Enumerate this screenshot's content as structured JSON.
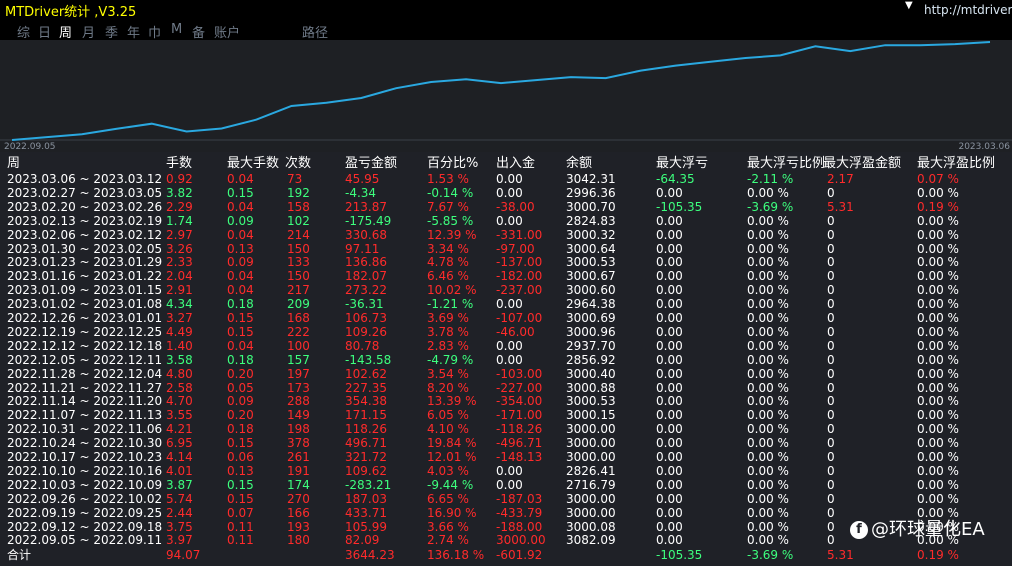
{
  "app": {
    "title": "MTDriver统计 ,V3.25",
    "url": "http://mtdriver.c",
    "brand_icon": "f",
    "brand": "@环球量化EA",
    "corner_icon": "chevron-down-icon"
  },
  "tabs": [
    {
      "label": "综",
      "active": false
    },
    {
      "label": "日",
      "active": false
    },
    {
      "label": "周",
      "active": true
    },
    {
      "label": "月",
      "active": false
    },
    {
      "label": "季",
      "active": false
    },
    {
      "label": "年",
      "active": false
    },
    {
      "label": "巾",
      "active": false
    },
    {
      "label": "M",
      "active": false
    },
    {
      "label": "备",
      "active": false
    },
    {
      "label": "账户",
      "active": false
    },
    {
      "label": "路径",
      "active": false
    }
  ],
  "chart_data": {
    "type": "line",
    "x_start_label": "2022.09.05",
    "x_end_label": "2023.03.06",
    "series_color": "#2aa8e0",
    "y_values": [
      3082.09,
      3000.08,
      3000.08,
      3000.11,
      3000.0,
      2716.79,
      2826.41,
      3000.0,
      3000.0,
      3000.0,
      3000.0,
      3000.15,
      3000.53,
      3000.88,
      3000.4,
      2856.92,
      2937.7,
      3000.96,
      3000.69,
      2964.38,
      3000.6,
      3000.67,
      3000.53,
      3000.64,
      3000.32,
      2824.83,
      3000.7,
      2996.36,
      3042.31
    ],
    "equity_values": [
      82.09,
      188.08,
      293.52,
      487.45,
      674.65,
      391.44,
      501.06,
      822.78,
      1319.49,
      1437.75,
      1609.07,
      1963.45,
      2190.8,
      2293.42,
      2150.91,
      2260.57,
      2367.32,
      2330.99,
      2603.86,
      2786.0,
      2923.86,
      3060.86,
      3158.51,
      3489.19,
      3313.7,
      3527.57,
      3523.23,
      3569.21,
      3644.23
    ]
  },
  "table": {
    "headers": {
      "period": "周",
      "lots": "手数",
      "max_lots": "最大手数",
      "trades": "次数",
      "profit": "盈亏金额",
      "percent": "百分比%",
      "inout": "出入金",
      "balance": "余额",
      "max_float_loss": "最大浮亏",
      "max_float_loss_pct": "最大浮亏比例",
      "max_float_profit": "最大浮盈金额",
      "max_float_profit_pct": "最大浮盈比例"
    },
    "rows": [
      {
        "period": "2023.03.06 ~ 2023.03.12",
        "lots": "0.92",
        "max_lots": "0.04",
        "trades": "73",
        "profit": "45.95",
        "percent": "1.53 %",
        "inout": "0.00",
        "balance": "3042.31",
        "mfl": "-64.35",
        "mflp": "-2.11 %",
        "mfp": "2.17",
        "mfpp": "0.07 %",
        "color": "red",
        "mfl_color": "green",
        "mfp_color": "red"
      },
      {
        "period": "2023.02.27 ~ 2023.03.05",
        "lots": "3.82",
        "max_lots": "0.15",
        "trades": "192",
        "profit": "-4.34",
        "percent": "-0.14 %",
        "inout": "0.00",
        "balance": "2996.36",
        "mfl": "0.00",
        "mflp": "0.00 %",
        "mfp": "0",
        "mfpp": "0.00 %",
        "color": "green",
        "mfl_color": "white",
        "mfp_color": "white"
      },
      {
        "period": "2023.02.20 ~ 2023.02.26",
        "lots": "2.29",
        "max_lots": "0.04",
        "trades": "158",
        "profit": "213.87",
        "percent": "7.67 %",
        "inout": "-38.00",
        "balance": "3000.70",
        "mfl": "-105.35",
        "mflp": "-3.69 %",
        "mfp": "5.31",
        "mfpp": "0.19 %",
        "color": "red",
        "mfl_color": "green",
        "mfp_color": "red"
      },
      {
        "period": "2023.02.13 ~ 2023.02.19",
        "lots": "1.74",
        "max_lots": "0.09",
        "trades": "102",
        "profit": "-175.49",
        "percent": "-5.85 %",
        "inout": "0.00",
        "balance": "2824.83",
        "mfl": "0.00",
        "mflp": "0.00 %",
        "mfp": "0",
        "mfpp": "0.00 %",
        "color": "green",
        "mfl_color": "white",
        "mfp_color": "white"
      },
      {
        "period": "2023.02.06 ~ 2023.02.12",
        "lots": "2.97",
        "max_lots": "0.04",
        "trades": "214",
        "profit": "330.68",
        "percent": "12.39 %",
        "inout": "-331.00",
        "balance": "3000.32",
        "mfl": "0.00",
        "mflp": "0.00 %",
        "mfp": "0",
        "mfpp": "0.00 %",
        "color": "red",
        "mfl_color": "white",
        "mfp_color": "white"
      },
      {
        "period": "2023.01.30 ~ 2023.02.05",
        "lots": "3.26",
        "max_lots": "0.13",
        "trades": "150",
        "profit": "97.11",
        "percent": "3.34 %",
        "inout": "-97.00",
        "balance": "3000.64",
        "mfl": "0.00",
        "mflp": "0.00 %",
        "mfp": "0",
        "mfpp": "0.00 %",
        "color": "red",
        "mfl_color": "white",
        "mfp_color": "white"
      },
      {
        "period": "2023.01.23 ~ 2023.01.29",
        "lots": "2.33",
        "max_lots": "0.09",
        "trades": "133",
        "profit": "136.86",
        "percent": "4.78 %",
        "inout": "-137.00",
        "balance": "3000.53",
        "mfl": "0.00",
        "mflp": "0.00 %",
        "mfp": "0",
        "mfpp": "0.00 %",
        "color": "red",
        "mfl_color": "white",
        "mfp_color": "white"
      },
      {
        "period": "2023.01.16 ~ 2023.01.22",
        "lots": "2.04",
        "max_lots": "0.04",
        "trades": "150",
        "profit": "182.07",
        "percent": "6.46 %",
        "inout": "-182.00",
        "balance": "3000.67",
        "mfl": "0.00",
        "mflp": "0.00 %",
        "mfp": "0",
        "mfpp": "0.00 %",
        "color": "red",
        "mfl_color": "white",
        "mfp_color": "white"
      },
      {
        "period": "2023.01.09 ~ 2023.01.15",
        "lots": "2.91",
        "max_lots": "0.04",
        "trades": "217",
        "profit": "273.22",
        "percent": "10.02 %",
        "inout": "-237.00",
        "balance": "3000.60",
        "mfl": "0.00",
        "mflp": "0.00 %",
        "mfp": "0",
        "mfpp": "0.00 %",
        "color": "red",
        "mfl_color": "white",
        "mfp_color": "white"
      },
      {
        "period": "2023.01.02 ~ 2023.01.08",
        "lots": "4.34",
        "max_lots": "0.18",
        "trades": "209",
        "profit": "-36.31",
        "percent": "-1.21 %",
        "inout": "0.00",
        "balance": "2964.38",
        "mfl": "0.00",
        "mflp": "0.00 %",
        "mfp": "0",
        "mfpp": "0.00 %",
        "color": "green",
        "mfl_color": "white",
        "mfp_color": "white"
      },
      {
        "period": "2022.12.26 ~ 2023.01.01",
        "lots": "3.27",
        "max_lots": "0.15",
        "trades": "168",
        "profit": "106.73",
        "percent": "3.69 %",
        "inout": "-107.00",
        "balance": "3000.69",
        "mfl": "0.00",
        "mflp": "0.00 %",
        "mfp": "0",
        "mfpp": "0.00 %",
        "color": "red",
        "mfl_color": "white",
        "mfp_color": "white"
      },
      {
        "period": "2022.12.19 ~ 2022.12.25",
        "lots": "4.49",
        "max_lots": "0.15",
        "trades": "222",
        "profit": "109.26",
        "percent": "3.78 %",
        "inout": "-46.00",
        "balance": "3000.96",
        "mfl": "0.00",
        "mflp": "0.00 %",
        "mfp": "0",
        "mfpp": "0.00 %",
        "color": "red",
        "mfl_color": "white",
        "mfp_color": "white"
      },
      {
        "period": "2022.12.12 ~ 2022.12.18",
        "lots": "1.40",
        "max_lots": "0.04",
        "trades": "100",
        "profit": "80.78",
        "percent": "2.83 %",
        "inout": "0.00",
        "balance": "2937.70",
        "mfl": "0.00",
        "mflp": "0.00 %",
        "mfp": "0",
        "mfpp": "0.00 %",
        "color": "red",
        "mfl_color": "white",
        "mfp_color": "white"
      },
      {
        "period": "2022.12.05 ~ 2022.12.11",
        "lots": "3.58",
        "max_lots": "0.18",
        "trades": "157",
        "profit": "-143.58",
        "percent": "-4.79 %",
        "inout": "0.00",
        "balance": "2856.92",
        "mfl": "0.00",
        "mflp": "0.00 %",
        "mfp": "0",
        "mfpp": "0.00 %",
        "color": "green",
        "mfl_color": "white",
        "mfp_color": "white"
      },
      {
        "period": "2022.11.28 ~ 2022.12.04",
        "lots": "4.80",
        "max_lots": "0.20",
        "trades": "197",
        "profit": "102.62",
        "percent": "3.54 %",
        "inout": "-103.00",
        "balance": "3000.40",
        "mfl": "0.00",
        "mflp": "0.00 %",
        "mfp": "0",
        "mfpp": "0.00 %",
        "color": "red",
        "mfl_color": "white",
        "mfp_color": "white"
      },
      {
        "period": "2022.11.21 ~ 2022.11.27",
        "lots": "2.58",
        "max_lots": "0.05",
        "trades": "173",
        "profit": "227.35",
        "percent": "8.20 %",
        "inout": "-227.00",
        "balance": "3000.88",
        "mfl": "0.00",
        "mflp": "0.00 %",
        "mfp": "0",
        "mfpp": "0.00 %",
        "color": "red",
        "mfl_color": "white",
        "mfp_color": "white"
      },
      {
        "period": "2022.11.14 ~ 2022.11.20",
        "lots": "4.70",
        "max_lots": "0.09",
        "trades": "288",
        "profit": "354.38",
        "percent": "13.39 %",
        "inout": "-354.00",
        "balance": "3000.53",
        "mfl": "0.00",
        "mflp": "0.00 %",
        "mfp": "0",
        "mfpp": "0.00 %",
        "color": "red",
        "mfl_color": "white",
        "mfp_color": "white"
      },
      {
        "period": "2022.11.07 ~ 2022.11.13",
        "lots": "3.55",
        "max_lots": "0.20",
        "trades": "149",
        "profit": "171.15",
        "percent": "6.05 %",
        "inout": "-171.00",
        "balance": "3000.15",
        "mfl": "0.00",
        "mflp": "0.00 %",
        "mfp": "0",
        "mfpp": "0.00 %",
        "color": "red",
        "mfl_color": "white",
        "mfp_color": "white"
      },
      {
        "period": "2022.10.31 ~ 2022.11.06",
        "lots": "4.21",
        "max_lots": "0.18",
        "trades": "198",
        "profit": "118.26",
        "percent": "4.10 %",
        "inout": "-118.26",
        "balance": "3000.00",
        "mfl": "0.00",
        "mflp": "0.00 %",
        "mfp": "0",
        "mfpp": "0.00 %",
        "color": "red",
        "mfl_color": "white",
        "mfp_color": "white"
      },
      {
        "period": "2022.10.24 ~ 2022.10.30",
        "lots": "6.95",
        "max_lots": "0.15",
        "trades": "378",
        "profit": "496.71",
        "percent": "19.84 %",
        "inout": "-496.71",
        "balance": "3000.00",
        "mfl": "0.00",
        "mflp": "0.00 %",
        "mfp": "0",
        "mfpp": "0.00 %",
        "color": "red",
        "mfl_color": "white",
        "mfp_color": "white"
      },
      {
        "period": "2022.10.17 ~ 2022.10.23",
        "lots": "4.14",
        "max_lots": "0.06",
        "trades": "261",
        "profit": "321.72",
        "percent": "12.01 %",
        "inout": "-148.13",
        "balance": "3000.00",
        "mfl": "0.00",
        "mflp": "0.00 %",
        "mfp": "0",
        "mfpp": "0.00 %",
        "color": "red",
        "mfl_color": "white",
        "mfp_color": "white"
      },
      {
        "period": "2022.10.10 ~ 2022.10.16",
        "lots": "4.01",
        "max_lots": "0.13",
        "trades": "191",
        "profit": "109.62",
        "percent": "4.03 %",
        "inout": "0.00",
        "balance": "2826.41",
        "mfl": "0.00",
        "mflp": "0.00 %",
        "mfp": "0",
        "mfpp": "0.00 %",
        "color": "red",
        "mfl_color": "white",
        "mfp_color": "white"
      },
      {
        "period": "2022.10.03 ~ 2022.10.09",
        "lots": "3.87",
        "max_lots": "0.15",
        "trades": "174",
        "profit": "-283.21",
        "percent": "-9.44 %",
        "inout": "0.00",
        "balance": "2716.79",
        "mfl": "0.00",
        "mflp": "0.00 %",
        "mfp": "0",
        "mfpp": "0.00 %",
        "color": "green",
        "mfl_color": "white",
        "mfp_color": "white"
      },
      {
        "period": "2022.09.26 ~ 2022.10.02",
        "lots": "5.74",
        "max_lots": "0.15",
        "trades": "270",
        "profit": "187.03",
        "percent": "6.65 %",
        "inout": "-187.03",
        "balance": "3000.00",
        "mfl": "0.00",
        "mflp": "0.00 %",
        "mfp": "0",
        "mfpp": "0.00 %",
        "color": "red",
        "mfl_color": "white",
        "mfp_color": "white"
      },
      {
        "period": "2022.09.19 ~ 2022.09.25",
        "lots": "2.44",
        "max_lots": "0.07",
        "trades": "166",
        "profit": "433.71",
        "percent": "16.90 %",
        "inout": "-433.79",
        "balance": "3000.00",
        "mfl": "0.00",
        "mflp": "0.00 %",
        "mfp": "0",
        "mfpp": "0.00 %",
        "color": "red",
        "mfl_color": "white",
        "mfp_color": "white"
      },
      {
        "period": "2022.09.12 ~ 2022.09.18",
        "lots": "3.75",
        "max_lots": "0.11",
        "trades": "193",
        "profit": "105.99",
        "percent": "3.66 %",
        "inout": "-188.00",
        "balance": "3000.08",
        "mfl": "0.00",
        "mflp": "0.00 %",
        "mfp": "0",
        "mfpp": "0.00 %",
        "color": "red",
        "mfl_color": "white",
        "mfp_color": "white"
      },
      {
        "period": "2022.09.05 ~ 2022.09.11",
        "lots": "3.97",
        "max_lots": "0.11",
        "trades": "180",
        "profit": "82.09",
        "percent": "2.74 %",
        "inout": "3000.00",
        "balance": "3082.09",
        "mfl": "0.00",
        "mflp": "0.00 %",
        "mfp": "0",
        "mfpp": "0.00 %",
        "color": "red",
        "mfl_color": "white",
        "mfp_color": "white"
      }
    ],
    "total": {
      "label": "合计",
      "lots": "94.07",
      "profit": "3644.23",
      "percent": "136.18 %",
      "inout": "-601.92",
      "mfl": "-105.35",
      "mflp": "-3.69 %",
      "mfp": "5.31",
      "mfpp": "0.19 %"
    }
  }
}
